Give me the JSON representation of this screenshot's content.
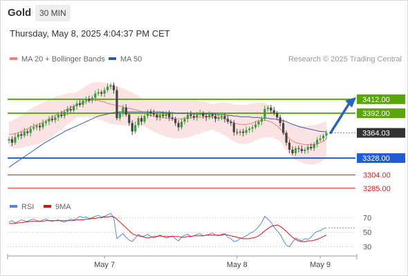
{
  "header": {
    "asset": "Gold",
    "timeframe": "30 MIN"
  },
  "timestamp": "Thursday, May 8, 2025 4:04:37 PM CET",
  "legend": [
    {
      "label": "MA 20 + Bollinger Bands",
      "color": "#f47f7f"
    },
    {
      "label": "MA 50",
      "color": "#2a5caa"
    }
  ],
  "rsi_legend": [
    {
      "label": "RSI",
      "color": "#5b84d6"
    },
    {
      "label": "9MA",
      "color": "#dd1111"
    }
  ],
  "copyright": "Research © 2025 Trading Central",
  "colors": {
    "up": "#3c9c3c",
    "down": "#444444",
    "resistance": "#5aa50a",
    "pivot": "#1f5cd6",
    "support": "#d81b1b",
    "arrow": "#2865b8",
    "band": "#fcdede",
    "ma20": "#f08080",
    "ma50": "#3a5ba8"
  },
  "chart_data": [
    {
      "type": "candlestick",
      "title": "",
      "ylim": [
        3270,
        3465
      ],
      "x_ticks": [
        "May 7",
        "May 8",
        "May 9"
      ],
      "last_price": "3364.03",
      "levels": [
        {
          "value": 3412.0,
          "label": "3412.00",
          "kind": "resistance"
        },
        {
          "value": 3392.0,
          "label": "3392.00",
          "kind": "resistance"
        },
        {
          "value": 3328.0,
          "label": "3328.00",
          "kind": "pivot"
        },
        {
          "value": 3304.0,
          "label": "3304.00",
          "kind": "support"
        },
        {
          "value": 3285.0,
          "label": "3285.00",
          "kind": "support"
        }
      ],
      "forecast_target": 3412.0,
      "close": [
        3355,
        3350,
        3358,
        3362,
        3360,
        3366,
        3364,
        3370,
        3372,
        3374,
        3372,
        3378,
        3380,
        3384,
        3382,
        3386,
        3390,
        3388,
        3394,
        3398,
        3396,
        3402,
        3406,
        3404,
        3410,
        3412,
        3410,
        3414,
        3420,
        3422,
        3420,
        3425,
        3430,
        3432,
        3425,
        3385,
        3392,
        3400,
        3390,
        3378,
        3366,
        3375,
        3385,
        3380,
        3388,
        3394,
        3392,
        3390,
        3386,
        3390,
        3388,
        3392,
        3386,
        3384,
        3378,
        3372,
        3380,
        3384,
        3390,
        3388,
        3386,
        3390,
        3392,
        3388,
        3386,
        3390,
        3388,
        3384,
        3386,
        3388,
        3384,
        3380,
        3378,
        3365,
        3364,
        3366,
        3364,
        3368,
        3370,
        3372,
        3376,
        3380,
        3384,
        3398,
        3400,
        3396,
        3392,
        3386,
        3378,
        3364,
        3350,
        3340,
        3335,
        3342,
        3341,
        3338,
        3340,
        3344,
        3342,
        3348,
        3354,
        3356,
        3360,
        3364
      ],
      "series": [
        {
          "name": "MA 20",
          "values": [
            3362,
            3362,
            3363,
            3364,
            3366,
            3368,
            3370,
            3372,
            3374,
            3375,
            3377,
            3379,
            3381,
            3384,
            3386,
            3389,
            3391,
            3393,
            3396,
            3398,
            3400,
            3402,
            3404,
            3406,
            3407,
            3409,
            3410,
            3411,
            3411,
            3410,
            3409,
            3408,
            3406,
            3405,
            3404,
            3403,
            3402,
            3401,
            3400,
            3399,
            3398,
            3397,
            3396,
            3394,
            3392,
            3390,
            3389,
            3388,
            3387,
            3386,
            3386,
            3385,
            3385,
            3384,
            3384,
            3384,
            3384,
            3385,
            3385,
            3385,
            3386,
            3386,
            3386,
            3387,
            3387,
            3387,
            3387,
            3386,
            3386,
            3385,
            3384,
            3382,
            3380,
            3378,
            3377,
            3376,
            3376,
            3376,
            3377,
            3378,
            3380,
            3381,
            3382,
            3382,
            3381,
            3380,
            3377,
            3374,
            3370,
            3365,
            3360,
            3356,
            3352,
            3350,
            3349,
            3348,
            3347,
            3347,
            3347,
            3347,
            3348,
            3350,
            3352,
            3355
          ]
        },
        {
          "name": "MA 50",
          "values": [
            3315,
            3318,
            3321,
            3324,
            3327,
            3330,
            3333,
            3336,
            3339,
            3342,
            3345,
            3348,
            3351,
            3353,
            3356,
            3358,
            3361,
            3363,
            3366,
            3368,
            3370,
            3372,
            3374,
            3376,
            3378,
            3380,
            3382,
            3384,
            3386,
            3388,
            3389,
            3390,
            3391,
            3392,
            3393,
            3393,
            3394,
            3394,
            3394,
            3394,
            3394,
            3394,
            3394,
            3394,
            3394,
            3394,
            3394,
            3394,
            3394,
            3394,
            3393,
            3393,
            3393,
            3393,
            3392,
            3392,
            3392,
            3392,
            3392,
            3391,
            3391,
            3391,
            3391,
            3391,
            3391,
            3391,
            3391,
            3390,
            3390,
            3390,
            3390,
            3389,
            3389,
            3388,
            3388,
            3387,
            3387,
            3387,
            3387,
            3386,
            3386,
            3386,
            3385,
            3385,
            3385,
            3384,
            3384,
            3383,
            3382,
            3381,
            3380,
            3378,
            3376,
            3375,
            3373,
            3372,
            3371,
            3370,
            3369,
            3368,
            3367,
            3366,
            3366,
            3365
          ]
        }
      ]
    },
    {
      "type": "line",
      "title": "",
      "ylim": [
        20,
        80
      ],
      "y_ticks": [
        30,
        50,
        70
      ],
      "series": [
        {
          "name": "RSI",
          "values": [
            64,
            66,
            63,
            65,
            67,
            66,
            65,
            67,
            68,
            66,
            65,
            67,
            68,
            66,
            65,
            66,
            67,
            65,
            64,
            66,
            68,
            67,
            69,
            72,
            70,
            71,
            69,
            70,
            72,
            73,
            71,
            72,
            74,
            76,
            70,
            41,
            45,
            48,
            43,
            39,
            37,
            42,
            47,
            44,
            45,
            47,
            44,
            42,
            44,
            46,
            44,
            42,
            43,
            45,
            41,
            38,
            43,
            46,
            47,
            44,
            45,
            47,
            48,
            45,
            46,
            47,
            49,
            46,
            45,
            47,
            48,
            43,
            41,
            37,
            38,
            41,
            43,
            45,
            48,
            50,
            53,
            58,
            63,
            72,
            68,
            64,
            57,
            52,
            47,
            39,
            32,
            30,
            36,
            42,
            40,
            38,
            41,
            40,
            43,
            48,
            51,
            52,
            55,
            56
          ]
        },
        {
          "name": "9MA",
          "values": [
            62,
            62,
            62,
            63,
            63,
            64,
            64,
            65,
            65,
            65,
            65,
            65,
            66,
            66,
            66,
            66,
            66,
            66,
            66,
            66,
            66,
            66,
            67,
            67,
            67,
            68,
            68,
            69,
            69,
            70,
            70,
            71,
            71,
            72,
            71,
            68,
            64,
            60,
            56,
            52,
            48,
            46,
            45,
            44,
            43,
            42,
            43,
            44,
            44,
            45,
            44,
            44,
            44,
            44,
            44,
            44,
            43,
            43,
            44,
            44,
            45,
            45,
            45,
            45,
            46,
            46,
            46,
            46,
            46,
            46,
            47,
            46,
            45,
            44,
            43,
            42,
            41,
            41,
            41,
            42,
            43,
            45,
            48,
            52,
            55,
            58,
            59,
            60,
            58,
            55,
            51,
            47,
            43,
            40,
            38,
            37,
            37,
            38,
            38,
            39,
            40,
            42,
            44,
            46
          ]
        }
      ]
    }
  ]
}
